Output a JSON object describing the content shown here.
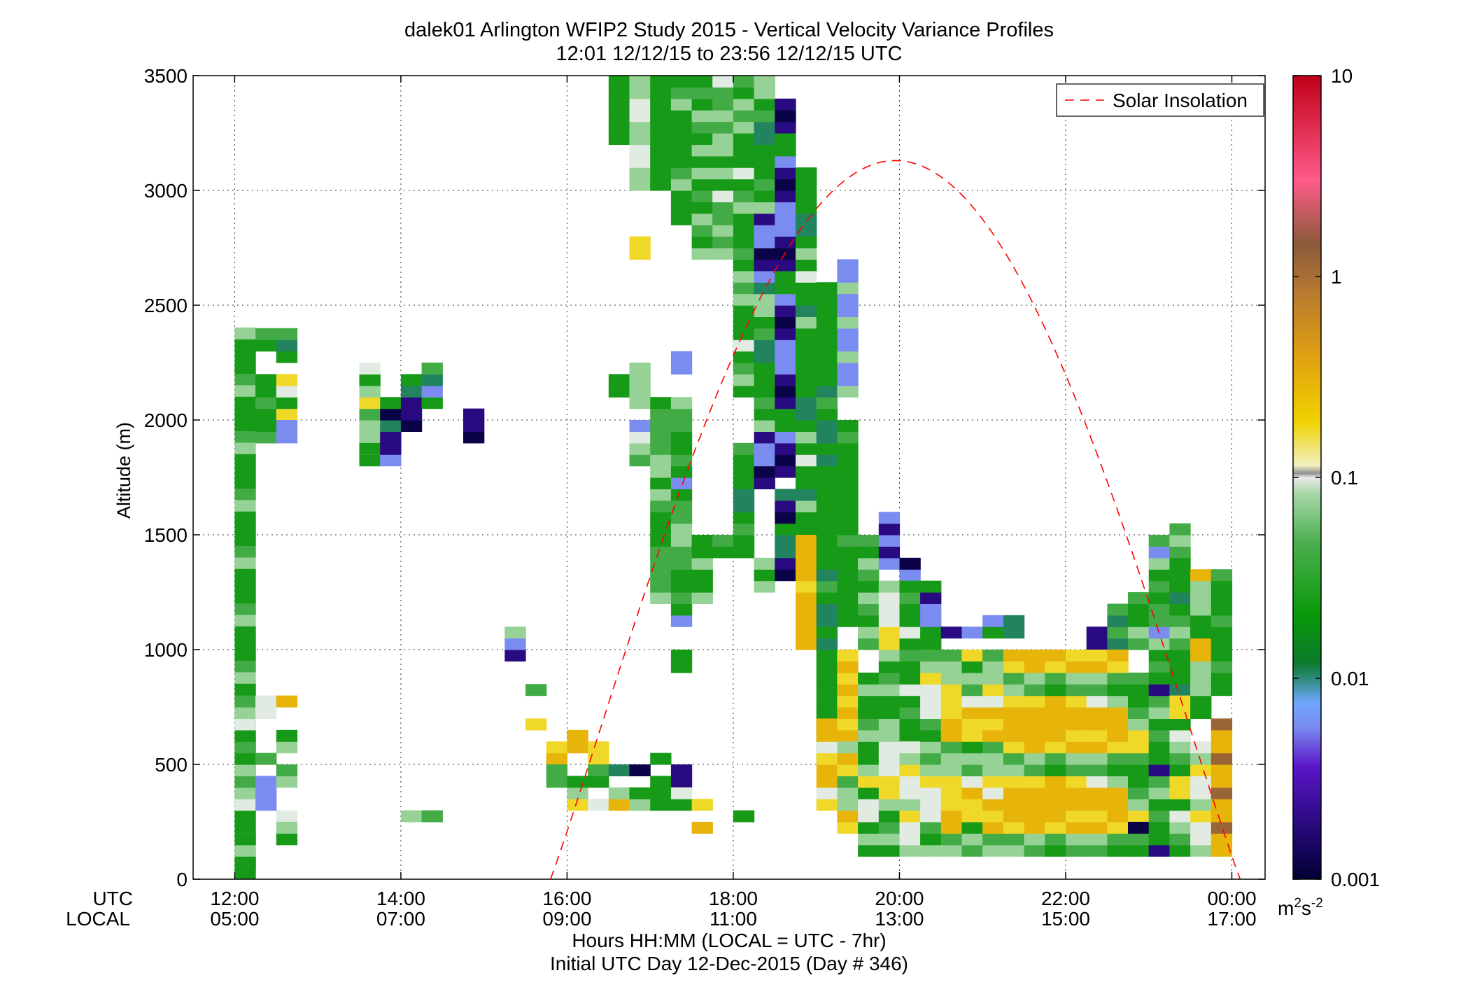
{
  "chart_data": {
    "type": "heatmap",
    "title": "dalek01 Arlington WFIP2 Study 2015 - Vertical Velocity Variance Profiles",
    "subtitle": "12:01 12/12/15 to 23:56 12/12/15  UTC",
    "xlabel": "Hours HH:MM  (LOCAL = UTC - 7hr)",
    "xlabel2": "Initial UTC Day 12-Dec-2015 (Day # 346)",
    "ylabel": "Altitude (m)",
    "x_row_labels": [
      "UTC",
      "LOCAL"
    ],
    "x_ticks_utc": [
      "12:00",
      "14:00",
      "16:00",
      "18:00",
      "20:00",
      "22:00",
      "00:00"
    ],
    "x_ticks_local": [
      "05:00",
      "07:00",
      "09:00",
      "11:00",
      "13:00",
      "15:00",
      "17:00"
    ],
    "x_tick_hours": [
      12,
      14,
      16,
      18,
      20,
      22,
      24
    ],
    "xlim_hours": [
      11.5,
      24.4
    ],
    "y_ticks": [
      0,
      500,
      1000,
      1500,
      2000,
      2500,
      3000,
      3500
    ],
    "ylim": [
      0,
      3500
    ],
    "grid": true,
    "legend": {
      "label": "Solar Insolation",
      "placement": "top-right",
      "color": "#ff0000",
      "style": "dashed"
    },
    "colorbar": {
      "scale": "log",
      "range": [
        0.001,
        10
      ],
      "ticks": [
        "10",
        "1",
        "0.1",
        "0.01",
        "0.001"
      ],
      "units_base": "m",
      "units_sup1": "2",
      "units_mid": "s",
      "units_sup2": "-2"
    },
    "cell_size": {
      "hours": 0.25,
      "meters": 50
    },
    "variance_classes": {
      "1": 0.015,
      "2": 0.03,
      "3": 0.06,
      "4": 0.09,
      "5": 0.18,
      "6": 0.3,
      "7": 0.005,
      "8": 0.002,
      "9": 0.0012,
      "0": 0.008,
      "b": 1.2
    },
    "columns": [
      {
        "t": 12.125,
        "runs": [
          [
            3,
            2400,
            "11321"
          ],
          [
            300,
            800,
            "4323121"
          ],
          [
            50,
            100,
            "1"
          ],
          [
            100,
            150,
            "3"
          ],
          [
            150,
            200,
            "1"
          ]
        ]
      },
      {
        "t": 12.375,
        "runs": [
          [
            2300,
            2400,
            "12"
          ],
          [
            1900,
            2200,
            "211"
          ],
          [
            700,
            800,
            "4"
          ],
          [
            500,
            550,
            "2"
          ],
          [
            300,
            450,
            "777"
          ]
        ]
      },
      {
        "t": 12.625,
        "runs": [
          [
            2250,
            2400,
            "102"
          ],
          [
            2000,
            2200,
            "514"
          ],
          [
            1900,
            2000,
            "7"
          ],
          [
            750,
            800,
            "6"
          ],
          [
            550,
            650,
            "31"
          ],
          [
            400,
            500,
            "32"
          ],
          [
            250,
            300,
            "4"
          ],
          [
            150,
            250,
            "13"
          ]
        ]
      },
      {
        "t": 13.625,
        "runs": [
          [
            1800,
            2250,
            "1433253"
          ],
          [
            1850,
            1900,
            "1"
          ]
        ]
      },
      {
        "t": 13.875,
        "runs": [
          [
            1800,
            2100,
            "788091"
          ]
        ]
      },
      {
        "t": 14.125,
        "runs": [
          [
            1950,
            2200,
            "98801"
          ],
          [
            250,
            300,
            "3"
          ]
        ]
      },
      {
        "t": 14.375,
        "runs": [
          [
            2050,
            2250,
            "1702"
          ],
          [
            250,
            300,
            "2"
          ]
        ]
      },
      {
        "t": 14.875,
        "runs": [
          [
            1900,
            2050,
            "988"
          ]
        ]
      },
      {
        "t": 15.375,
        "runs": [
          [
            950,
            1100,
            "873"
          ]
        ]
      },
      {
        "t": 15.625,
        "runs": [
          [
            800,
            850,
            "2"
          ],
          [
            650,
            700,
            "5"
          ]
        ]
      },
      {
        "t": 15.875,
        "runs": [
          [
            500,
            600,
            "65"
          ],
          [
            400,
            500,
            "2"
          ]
        ]
      },
      {
        "t": 16.125,
        "runs": [
          [
            550,
            650,
            "6"
          ],
          [
            300,
            450,
            "531"
          ]
        ]
      },
      {
        "t": 16.375,
        "runs": [
          [
            500,
            600,
            "5"
          ],
          [
            400,
            500,
            "12"
          ],
          [
            300,
            350,
            "4"
          ]
        ]
      },
      {
        "t": 16.625,
        "runs": [
          [
            3200,
            3500,
            "1111"
          ],
          [
            2100,
            2200,
            "11"
          ],
          [
            450,
            500,
            "0"
          ],
          [
            300,
            400,
            "63"
          ]
        ]
      },
      {
        "t": 16.875,
        "runs": [
          [
            3000,
            3500,
            "3344"
          ],
          [
            2050,
            2250,
            "33"
          ],
          [
            1800,
            2000,
            "2347"
          ],
          [
            2700,
            2800,
            "5"
          ],
          [
            450,
            500,
            "9"
          ],
          [
            300,
            400,
            "31"
          ]
        ]
      },
      {
        "t": 17.125,
        "runs": [
          [
            3000,
            3500,
            "11"
          ],
          [
            1200,
            2100,
            "322221112313"
          ],
          [
            500,
            550,
            "1"
          ],
          [
            300,
            450,
            "11"
          ]
        ]
      },
      {
        "t": 17.375,
        "runs": [
          [
            2850,
            3500,
            "1113211"
          ],
          [
            1100,
            2100,
            "712112233221"
          ],
          [
            2200,
            2300,
            "7"
          ],
          [
            900,
            1000,
            "1"
          ],
          [
            400,
            500,
            "8"
          ],
          [
            300,
            400,
            "14"
          ]
        ]
      },
      {
        "t": 17.625,
        "runs": [
          [
            2700,
            3500,
            "312312131"
          ],
          [
            1200,
            1500,
            "311"
          ],
          [
            300,
            350,
            "5"
          ],
          [
            200,
            250,
            "6"
          ]
        ]
      },
      {
        "t": 17.875,
        "runs": [
          [
            2700,
            3500,
            "3232241313"
          ],
          [
            1400,
            1500,
            "12"
          ]
        ]
      },
      {
        "t": 18.125,
        "runs": [
          [
            2100,
            3500,
            "132141113231211"
          ],
          [
            1400,
            1900,
            "1121001"
          ],
          [
            250,
            300,
            "1"
          ]
        ]
      },
      {
        "t": 18.375,
        "runs": [
          [
            1700,
            3500,
            "8977831211100213307"
          ],
          [
            1250,
            1400,
            "31"
          ]
        ]
      },
      {
        "t": 18.625,
        "runs": [
          [
            1750,
            3400,
            "898711898777"
          ],
          [
            1300,
            1700,
            "98001"
          ]
        ]
      },
      {
        "t": 18.875,
        "runs": [
          [
            1400,
            3100,
            "1111301141310011"
          ],
          [
            1000,
            1500,
            "666665"
          ]
        ]
      },
      {
        "t": 19.125,
        "runs": [
          [
            500,
            2600,
            "0111111111010012"
          ],
          [
            300,
            700,
            "5466"
          ]
        ]
      },
      {
        "t": 19.375,
        "runs": [
          [
            2100,
            2700,
            "377"
          ],
          [
            1100,
            2000,
            "111111121"
          ],
          [
            600,
            1000,
            "65"
          ],
          [
            200,
            600,
            "56332"
          ]
        ]
      },
      {
        "t": 19.625,
        "runs": [
          [
            1000,
            1500,
            "231"
          ],
          [
            100,
            900,
            "1314415311321"
          ]
        ]
      },
      {
        "t": 19.875,
        "runs": [
          [
            1350,
            1600,
            "78"
          ],
          [
            100,
            1300,
            "1321355444331"
          ]
        ]
      },
      {
        "t": 20.125,
        "runs": [
          [
            1300,
            1400,
            "79"
          ],
          [
            600,
            1300,
            "11214"
          ],
          [
            100,
            600,
            "3445"
          ]
        ]
      },
      {
        "t": 20.375,
        "runs": [
          [
            1000,
            1300,
            "11778"
          ],
          [
            100,
            1000,
            "312444532"
          ]
        ]
      },
      {
        "t": 20.625,
        "runs": [
          [
            1050,
            1100,
            "8"
          ],
          [
            100,
            1000,
            "32665553"
          ]
        ]
      },
      {
        "t": 20.875,
        "runs": [
          [
            1050,
            1100,
            "7"
          ],
          [
            100,
            1000,
            "2315564"
          ]
        ]
      },
      {
        "t": 21.125,
        "runs": [
          [
            1050,
            1150,
            "17"
          ],
          [
            100,
            1000,
            "32656453"
          ]
        ]
      },
      {
        "t": 21.375,
        "runs": [
          [
            1050,
            1150,
            "0"
          ],
          [
            100,
            1000,
            "3256665"
          ]
        ]
      },
      {
        "t": 21.625,
        "runs": [
          [
            100,
            1000,
            "2366665"
          ]
        ]
      },
      {
        "t": 21.875,
        "runs": [
          [
            100,
            1000,
            "1256666"
          ]
        ]
      },
      {
        "t": 22.125,
        "runs": [
          [
            100,
            1000,
            "2365665"
          ]
        ]
      },
      {
        "t": 22.375,
        "runs": [
          [
            1000,
            1100,
            "8"
          ],
          [
            100,
            1000,
            "2365664"
          ]
        ]
      },
      {
        "t": 22.625,
        "runs": [
          [
            1000,
            1200,
            "02"
          ],
          [
            100,
            1000,
            "1256663"
          ]
        ]
      },
      {
        "t": 22.875,
        "runs": [
          [
            1000,
            1250,
            "2311"
          ],
          [
            100,
            900,
            "1255321"
          ],
          [
            200,
            250,
            "9"
          ]
        ]
      },
      {
        "t": 23.125,
        "runs": [
          [
            900,
            1500,
            "2137221"
          ],
          [
            100,
            900,
            "8112132"
          ]
        ]
      },
      {
        "t": 23.375,
        "runs": [
          [
            800,
            1550,
            "01112321"
          ],
          [
            100,
            800,
            "1234155"
          ]
        ]
      },
      {
        "t": 23.625,
        "runs": [
          [
            700,
            1350,
            "1133366"
          ],
          [
            100,
            600,
            "3445"
          ]
        ]
      },
      {
        "t": 23.875,
        "runs": [
          [
            800,
            1350,
            "1121"
          ],
          [
            100,
            700,
            "66b"
          ]
        ]
      }
    ]
  }
}
